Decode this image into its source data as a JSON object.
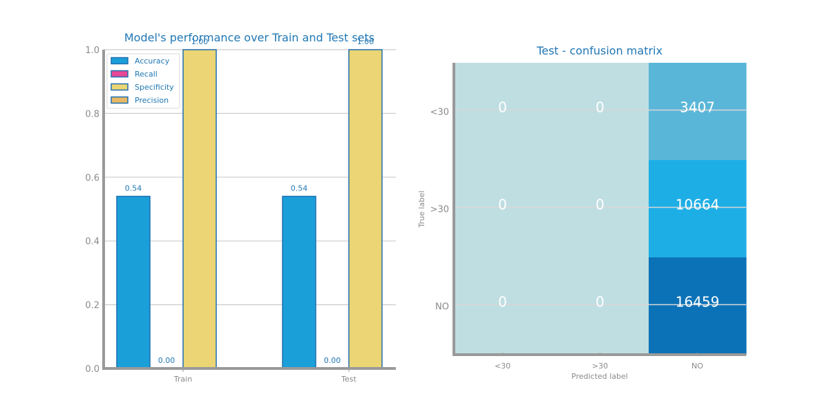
{
  "chart_data": [
    {
      "type": "bar",
      "title": "Model's performance over Train and Test sets",
      "xlabel": "",
      "ylabel": "",
      "categories": [
        "Train",
        "Test"
      ],
      "ylim": [
        0,
        1
      ],
      "yticks": [
        "0.0",
        "0.2",
        "0.4",
        "0.6",
        "0.8",
        "1.0"
      ],
      "grid": "horizontal",
      "legend_position": "top-left",
      "series": [
        {
          "name": "Accuracy",
          "values": [
            0.54,
            0.54
          ],
          "labels": [
            "0.54",
            "0.54"
          ],
          "color": "#1a9fd9"
        },
        {
          "name": "Recall",
          "values": [
            0.0,
            0.0
          ],
          "labels": [
            "0.00",
            "0.00"
          ],
          "color": "#e84896"
        },
        {
          "name": "Specificity",
          "values": [
            1.0,
            1.0
          ],
          "labels": [
            "1.00",
            "1.00"
          ],
          "color": "#ebd574"
        },
        {
          "name": "Precision",
          "values": [
            0.0,
            0.0
          ],
          "labels": [
            "",
            ""
          ],
          "color": "#e7b866"
        }
      ]
    },
    {
      "type": "heatmap",
      "title": "Test - confusion matrix",
      "xlabel": "Predicted label",
      "ylabel": "True label",
      "x_categories": [
        "<30",
        ">30",
        "NO"
      ],
      "y_categories": [
        "<30",
        ">30",
        "NO"
      ],
      "values": [
        [
          0,
          0,
          3407
        ],
        [
          0,
          0,
          10664
        ],
        [
          0,
          0,
          16459
        ]
      ],
      "cell_labels": [
        [
          "0",
          "0",
          "3407"
        ],
        [
          "0",
          "0",
          "10664"
        ],
        [
          "0",
          "0",
          "16459"
        ]
      ],
      "colors": [
        [
          "#bfdee2",
          "#bfdee2",
          "#5ab6d9"
        ],
        [
          "#bfdee2",
          "#bfdee2",
          "#1eaee6"
        ],
        [
          "#bfdee2",
          "#bfdee2",
          "#0c72b7"
        ]
      ]
    }
  ]
}
